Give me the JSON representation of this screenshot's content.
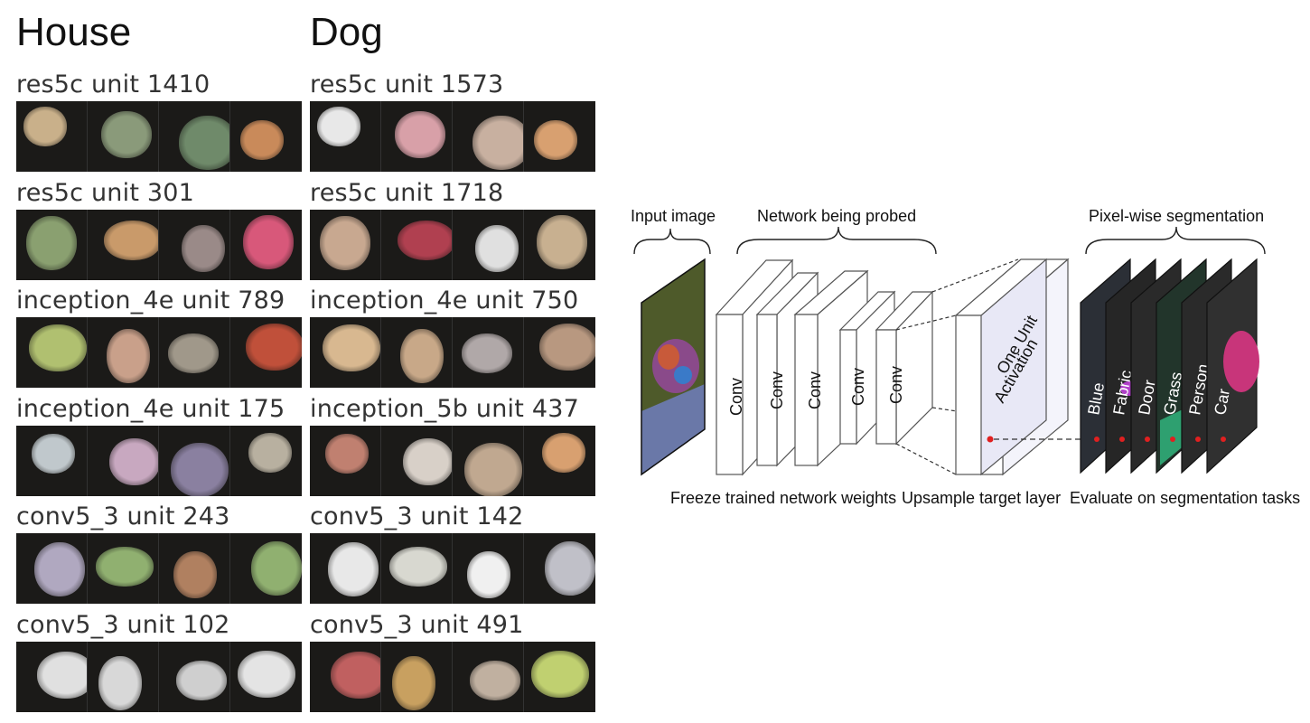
{
  "columns": [
    {
      "title": "House",
      "units": [
        {
          "label": "res5c unit 1410",
          "colors": [
            "#c9b08a",
            "#8a9a7a",
            "#6f8a6a",
            "#c98a5a"
          ]
        },
        {
          "label": "res5c unit 301",
          "colors": [
            "#8aa070",
            "#c99a6a",
            "#9a8a88",
            "#d8587a"
          ]
        },
        {
          "label": "inception_4e unit 789",
          "colors": [
            "#b0c070",
            "#c9a08a",
            "#a0988a",
            "#c0503a"
          ]
        },
        {
          "label": "inception_4e unit 175",
          "colors": [
            "#c0c8cc",
            "#c8a8c0",
            "#8a80a0",
            "#b8b0a0"
          ]
        },
        {
          "label": "conv5_3 unit 243",
          "colors": [
            "#b0a8c0",
            "#90b070",
            "#b08060",
            "#90b070"
          ]
        },
        {
          "label": "conv5_3 unit 102",
          "colors": [
            "#e0e0e0",
            "#d8d8d8",
            "#cfcfcf",
            "#e4e4e4"
          ]
        }
      ]
    },
    {
      "title": "Dog",
      "units": [
        {
          "label": "res5c unit 1573",
          "colors": [
            "#e8e8e8",
            "#d8a0a8",
            "#c8b0a0",
            "#d8a070"
          ]
        },
        {
          "label": "res5c unit 1718",
          "colors": [
            "#c8a890",
            "#b04050",
            "#e0e0e0",
            "#c8b090"
          ]
        },
        {
          "label": "inception_4e unit 750",
          "colors": [
            "#d8b890",
            "#c8a888",
            "#b0a8a8",
            "#b89880"
          ]
        },
        {
          "label": "inception_5b unit 437",
          "colors": [
            "#c08070",
            "#d8d0c8",
            "#c0a890",
            "#d8a070"
          ]
        },
        {
          "label": "conv5_3 unit 142",
          "colors": [
            "#e8e8e8",
            "#d8d8d0",
            "#f0f0f0",
            "#c0c0c8"
          ]
        },
        {
          "label": "conv5_3 unit 491",
          "colors": [
            "#c06060",
            "#c8a060",
            "#c0b0a0",
            "#c0d070"
          ]
        }
      ]
    }
  ],
  "diagram": {
    "input_label": "Input image",
    "network_label": "Network being probed",
    "segmentation_label": "Pixel-wise segmentation",
    "layer_label": "Conv",
    "activation_label_1": "One Unit",
    "activation_label_2": "Activation",
    "seg_classes": [
      "Blue",
      "Fabric",
      "Door",
      "Grass",
      "Person",
      "Car"
    ],
    "bottom_labels": [
      "Freeze trained network weights",
      "Upsample target layer",
      "Evaluate on segmentation tasks"
    ]
  }
}
